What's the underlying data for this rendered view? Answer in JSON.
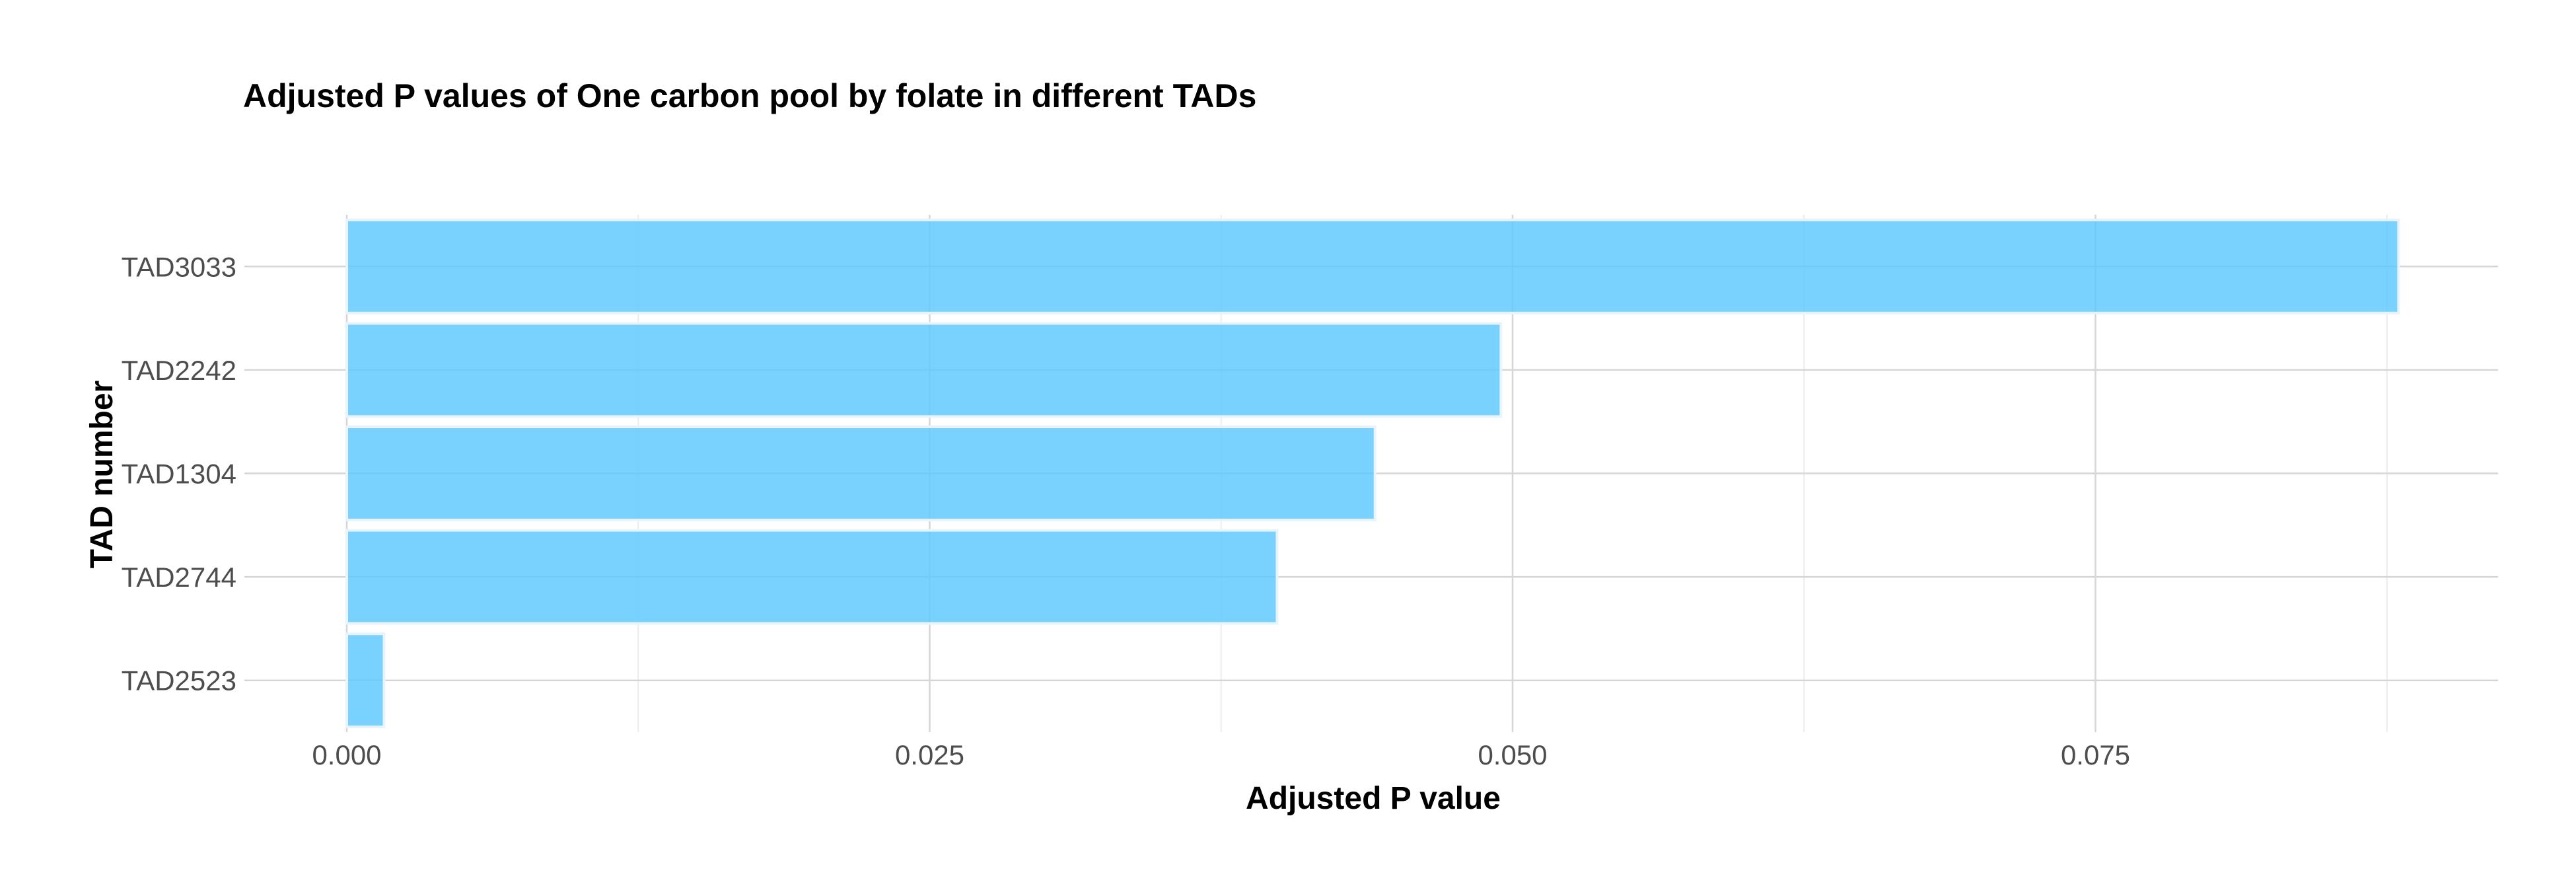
{
  "chart_data": {
    "type": "bar",
    "orientation": "horizontal",
    "title": "Adjusted P values of One carbon pool by folate in different TADs",
    "xlabel": "Adjusted P value",
    "ylabel": "TAD number",
    "categories": [
      "TAD3033",
      "TAD2242",
      "TAD1304",
      "TAD2744",
      "TAD2523"
    ],
    "values": [
      0.088,
      0.0495,
      0.0441,
      0.0399,
      0.0016
    ],
    "xlim": [
      0,
      0.0925
    ],
    "x_ticks": [
      0,
      0.025,
      0.05,
      0.075
    ],
    "x_tick_labels": [
      "0.000",
      "0.025",
      "0.050",
      "0.075"
    ],
    "grid": true,
    "legend": "none",
    "bar_color": "#5bc8fc"
  }
}
